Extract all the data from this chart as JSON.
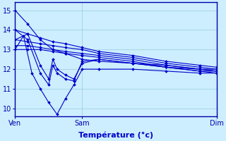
{
  "xlabel": "Température (°c)",
  "bg_color": "#cceeff",
  "line_color": "#0000cc",
  "grid_color": "#99ccdd",
  "axis_color": "#0000aa",
  "ylim": [
    9.6,
    15.4
  ],
  "xlim": [
    0,
    96
  ],
  "x_ticks": [
    0,
    32,
    96
  ],
  "x_tick_labels": [
    "Ven",
    "Sam",
    "Dim"
  ],
  "y_ticks": [
    10,
    11,
    12,
    13,
    14,
    15
  ],
  "series": [
    {
      "x": [
        0,
        6,
        12,
        18,
        24,
        32,
        40,
        56,
        72,
        88,
        96
      ],
      "y": [
        15.0,
        14.3,
        13.5,
        13.0,
        12.8,
        12.5,
        12.4,
        12.3,
        12.1,
        12.0,
        12.0
      ]
    },
    {
      "x": [
        0,
        6,
        12,
        18,
        24,
        32,
        40,
        56,
        72,
        88,
        96
      ],
      "y": [
        14.0,
        13.8,
        13.6,
        13.4,
        13.3,
        13.1,
        12.9,
        12.7,
        12.4,
        12.2,
        12.1
      ]
    },
    {
      "x": [
        0,
        6,
        12,
        18,
        24,
        32,
        40,
        56,
        72,
        88,
        96
      ],
      "y": [
        13.5,
        13.4,
        13.3,
        13.2,
        13.1,
        13.0,
        12.8,
        12.6,
        12.3,
        12.1,
        12.0
      ]
    },
    {
      "x": [
        0,
        6,
        12,
        18,
        24,
        32,
        40,
        56,
        72,
        88,
        96
      ],
      "y": [
        13.2,
        13.2,
        13.1,
        13.0,
        12.9,
        12.8,
        12.7,
        12.5,
        12.2,
        12.0,
        11.9
      ]
    },
    {
      "x": [
        0,
        6,
        12,
        18,
        24,
        32,
        40,
        56,
        72,
        88,
        96
      ],
      "y": [
        13.0,
        13.0,
        13.0,
        12.9,
        12.8,
        12.7,
        12.6,
        12.4,
        12.1,
        11.9,
        11.8
      ]
    },
    {
      "x": [
        0,
        6,
        12,
        16,
        18,
        20,
        24,
        28,
        32,
        40,
        56,
        72,
        88,
        96
      ],
      "y": [
        13.5,
        13.8,
        12.2,
        11.5,
        12.5,
        12.0,
        11.7,
        11.5,
        12.3,
        12.5,
        12.3,
        12.2,
        12.0,
        11.9
      ]
    },
    {
      "x": [
        0,
        6,
        12,
        16,
        18,
        20,
        24,
        28,
        32,
        40,
        56,
        72,
        88,
        96
      ],
      "y": [
        14.0,
        13.5,
        11.8,
        11.2,
        12.2,
        11.8,
        11.5,
        11.4,
        12.4,
        12.5,
        12.3,
        12.1,
        11.9,
        11.9
      ]
    },
    {
      "x": [
        0,
        4,
        8,
        12,
        16,
        20,
        24,
        28,
        32,
        40,
        56,
        72,
        88,
        96
      ],
      "y": [
        13.0,
        13.7,
        11.8,
        11.0,
        10.3,
        9.7,
        10.5,
        11.2,
        12.0,
        12.0,
        12.0,
        11.9,
        11.8,
        11.8
      ]
    }
  ]
}
